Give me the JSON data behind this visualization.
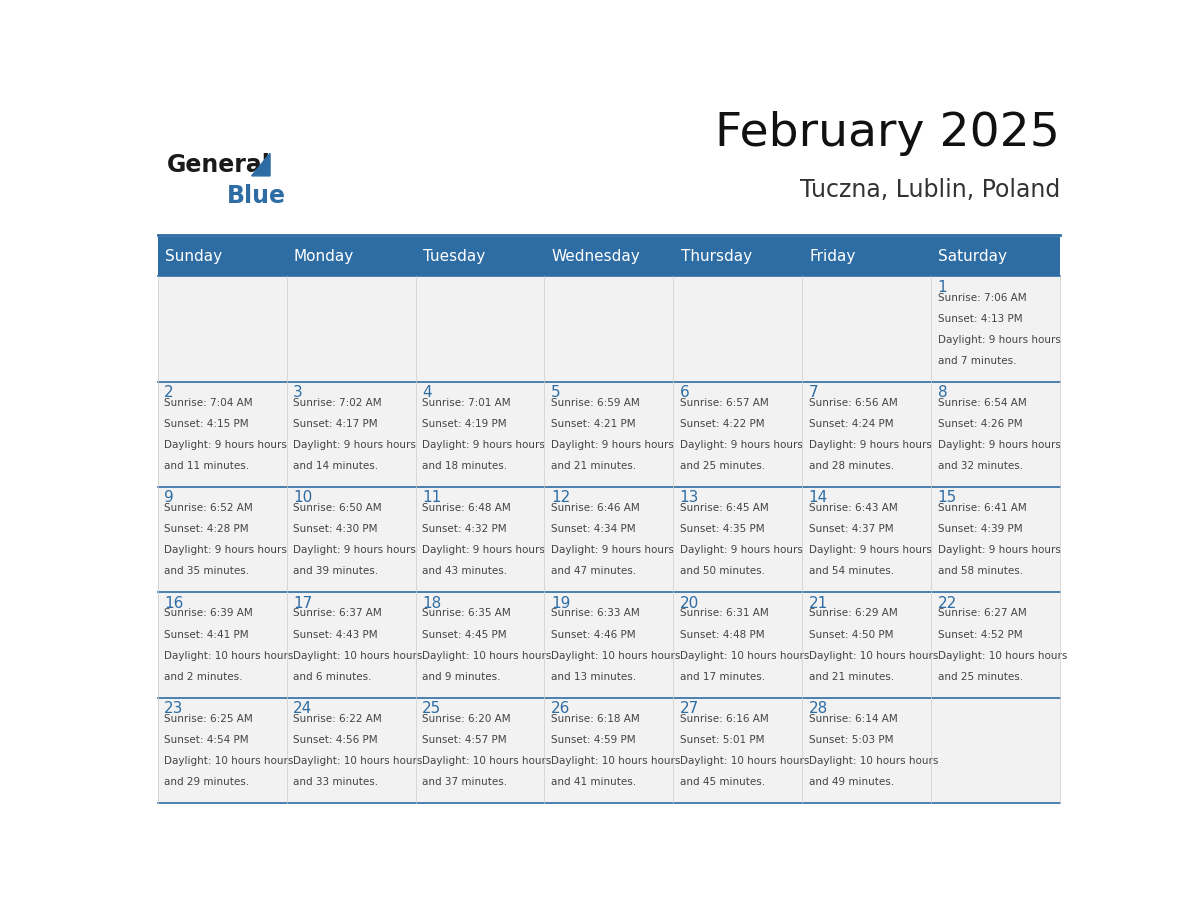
{
  "title": "February 2025",
  "subtitle": "Tuczna, Lublin, Poland",
  "header_bg": "#2E6DA4",
  "header_text_color": "#FFFFFF",
  "cell_bg": "#F2F2F2",
  "day_number_color": "#2E6DA4",
  "info_text_color": "#444444",
  "border_color": "#2E6DA4",
  "days_of_week": [
    "Sunday",
    "Monday",
    "Tuesday",
    "Wednesday",
    "Thursday",
    "Friday",
    "Saturday"
  ],
  "weeks": [
    [
      {
        "day": null,
        "sunrise": null,
        "sunset": null,
        "daylight": null
      },
      {
        "day": null,
        "sunrise": null,
        "sunset": null,
        "daylight": null
      },
      {
        "day": null,
        "sunrise": null,
        "sunset": null,
        "daylight": null
      },
      {
        "day": null,
        "sunrise": null,
        "sunset": null,
        "daylight": null
      },
      {
        "day": null,
        "sunrise": null,
        "sunset": null,
        "daylight": null
      },
      {
        "day": null,
        "sunrise": null,
        "sunset": null,
        "daylight": null
      },
      {
        "day": 1,
        "sunrise": "7:06 AM",
        "sunset": "4:13 PM",
        "daylight": "9 hours and 7 minutes"
      }
    ],
    [
      {
        "day": 2,
        "sunrise": "7:04 AM",
        "sunset": "4:15 PM",
        "daylight": "9 hours and 11 minutes"
      },
      {
        "day": 3,
        "sunrise": "7:02 AM",
        "sunset": "4:17 PM",
        "daylight": "9 hours and 14 minutes"
      },
      {
        "day": 4,
        "sunrise": "7:01 AM",
        "sunset": "4:19 PM",
        "daylight": "9 hours and 18 minutes"
      },
      {
        "day": 5,
        "sunrise": "6:59 AM",
        "sunset": "4:21 PM",
        "daylight": "9 hours and 21 minutes"
      },
      {
        "day": 6,
        "sunrise": "6:57 AM",
        "sunset": "4:22 PM",
        "daylight": "9 hours and 25 minutes"
      },
      {
        "day": 7,
        "sunrise": "6:56 AM",
        "sunset": "4:24 PM",
        "daylight": "9 hours and 28 minutes"
      },
      {
        "day": 8,
        "sunrise": "6:54 AM",
        "sunset": "4:26 PM",
        "daylight": "9 hours and 32 minutes"
      }
    ],
    [
      {
        "day": 9,
        "sunrise": "6:52 AM",
        "sunset": "4:28 PM",
        "daylight": "9 hours and 35 minutes"
      },
      {
        "day": 10,
        "sunrise": "6:50 AM",
        "sunset": "4:30 PM",
        "daylight": "9 hours and 39 minutes"
      },
      {
        "day": 11,
        "sunrise": "6:48 AM",
        "sunset": "4:32 PM",
        "daylight": "9 hours and 43 minutes"
      },
      {
        "day": 12,
        "sunrise": "6:46 AM",
        "sunset": "4:34 PM",
        "daylight": "9 hours and 47 minutes"
      },
      {
        "day": 13,
        "sunrise": "6:45 AM",
        "sunset": "4:35 PM",
        "daylight": "9 hours and 50 minutes"
      },
      {
        "day": 14,
        "sunrise": "6:43 AM",
        "sunset": "4:37 PM",
        "daylight": "9 hours and 54 minutes"
      },
      {
        "day": 15,
        "sunrise": "6:41 AM",
        "sunset": "4:39 PM",
        "daylight": "9 hours and 58 minutes"
      }
    ],
    [
      {
        "day": 16,
        "sunrise": "6:39 AM",
        "sunset": "4:41 PM",
        "daylight": "10 hours and 2 minutes"
      },
      {
        "day": 17,
        "sunrise": "6:37 AM",
        "sunset": "4:43 PM",
        "daylight": "10 hours and 6 minutes"
      },
      {
        "day": 18,
        "sunrise": "6:35 AM",
        "sunset": "4:45 PM",
        "daylight": "10 hours and 9 minutes"
      },
      {
        "day": 19,
        "sunrise": "6:33 AM",
        "sunset": "4:46 PM",
        "daylight": "10 hours and 13 minutes"
      },
      {
        "day": 20,
        "sunrise": "6:31 AM",
        "sunset": "4:48 PM",
        "daylight": "10 hours and 17 minutes"
      },
      {
        "day": 21,
        "sunrise": "6:29 AM",
        "sunset": "4:50 PM",
        "daylight": "10 hours and 21 minutes"
      },
      {
        "day": 22,
        "sunrise": "6:27 AM",
        "sunset": "4:52 PM",
        "daylight": "10 hours and 25 minutes"
      }
    ],
    [
      {
        "day": 23,
        "sunrise": "6:25 AM",
        "sunset": "4:54 PM",
        "daylight": "10 hours and 29 minutes"
      },
      {
        "day": 24,
        "sunrise": "6:22 AM",
        "sunset": "4:56 PM",
        "daylight": "10 hours and 33 minutes"
      },
      {
        "day": 25,
        "sunrise": "6:20 AM",
        "sunset": "4:57 PM",
        "daylight": "10 hours and 37 minutes"
      },
      {
        "day": 26,
        "sunrise": "6:18 AM",
        "sunset": "4:59 PM",
        "daylight": "10 hours and 41 minutes"
      },
      {
        "day": 27,
        "sunrise": "6:16 AM",
        "sunset": "5:01 PM",
        "daylight": "10 hours and 45 minutes"
      },
      {
        "day": 28,
        "sunrise": "6:14 AM",
        "sunset": "5:03 PM",
        "daylight": "10 hours and 49 minutes"
      },
      {
        "day": null,
        "sunrise": null,
        "sunset": null,
        "daylight": null
      }
    ]
  ]
}
